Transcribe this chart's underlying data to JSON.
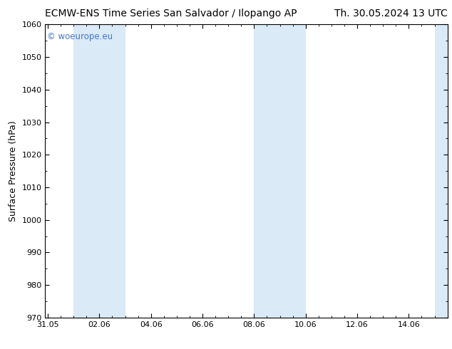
{
  "title_left": "ECMW-ENS Time Series San Salvador / Ilopango AP",
  "title_right": "Th. 30.05.2024 13 UTC",
  "ylabel": "Surface Pressure (hPa)",
  "ylim": [
    970,
    1060
  ],
  "yticks": [
    970,
    980,
    990,
    1000,
    1010,
    1020,
    1030,
    1040,
    1050,
    1060
  ],
  "xtick_labels": [
    "31.05",
    "02.06",
    "04.06",
    "06.06",
    "08.06",
    "10.06",
    "12.06",
    "14.06"
  ],
  "xtick_positions": [
    0,
    2,
    4,
    6,
    8,
    10,
    12,
    14
  ],
  "xlim": [
    -0.1,
    15.5
  ],
  "shaded_bands": [
    {
      "x_start": 1.0,
      "x_end": 3.0
    },
    {
      "x_start": 8.0,
      "x_end": 10.0
    },
    {
      "x_start": 15.0,
      "x_end": 15.5
    }
  ],
  "shade_color": "#daeaf6",
  "background_color": "#ffffff",
  "watermark_text": "© woeurope.eu",
  "watermark_color": "#4477cc",
  "title_fontsize": 10,
  "ylabel_fontsize": 9,
  "tick_fontsize": 8,
  "watermark_fontsize": 8.5
}
